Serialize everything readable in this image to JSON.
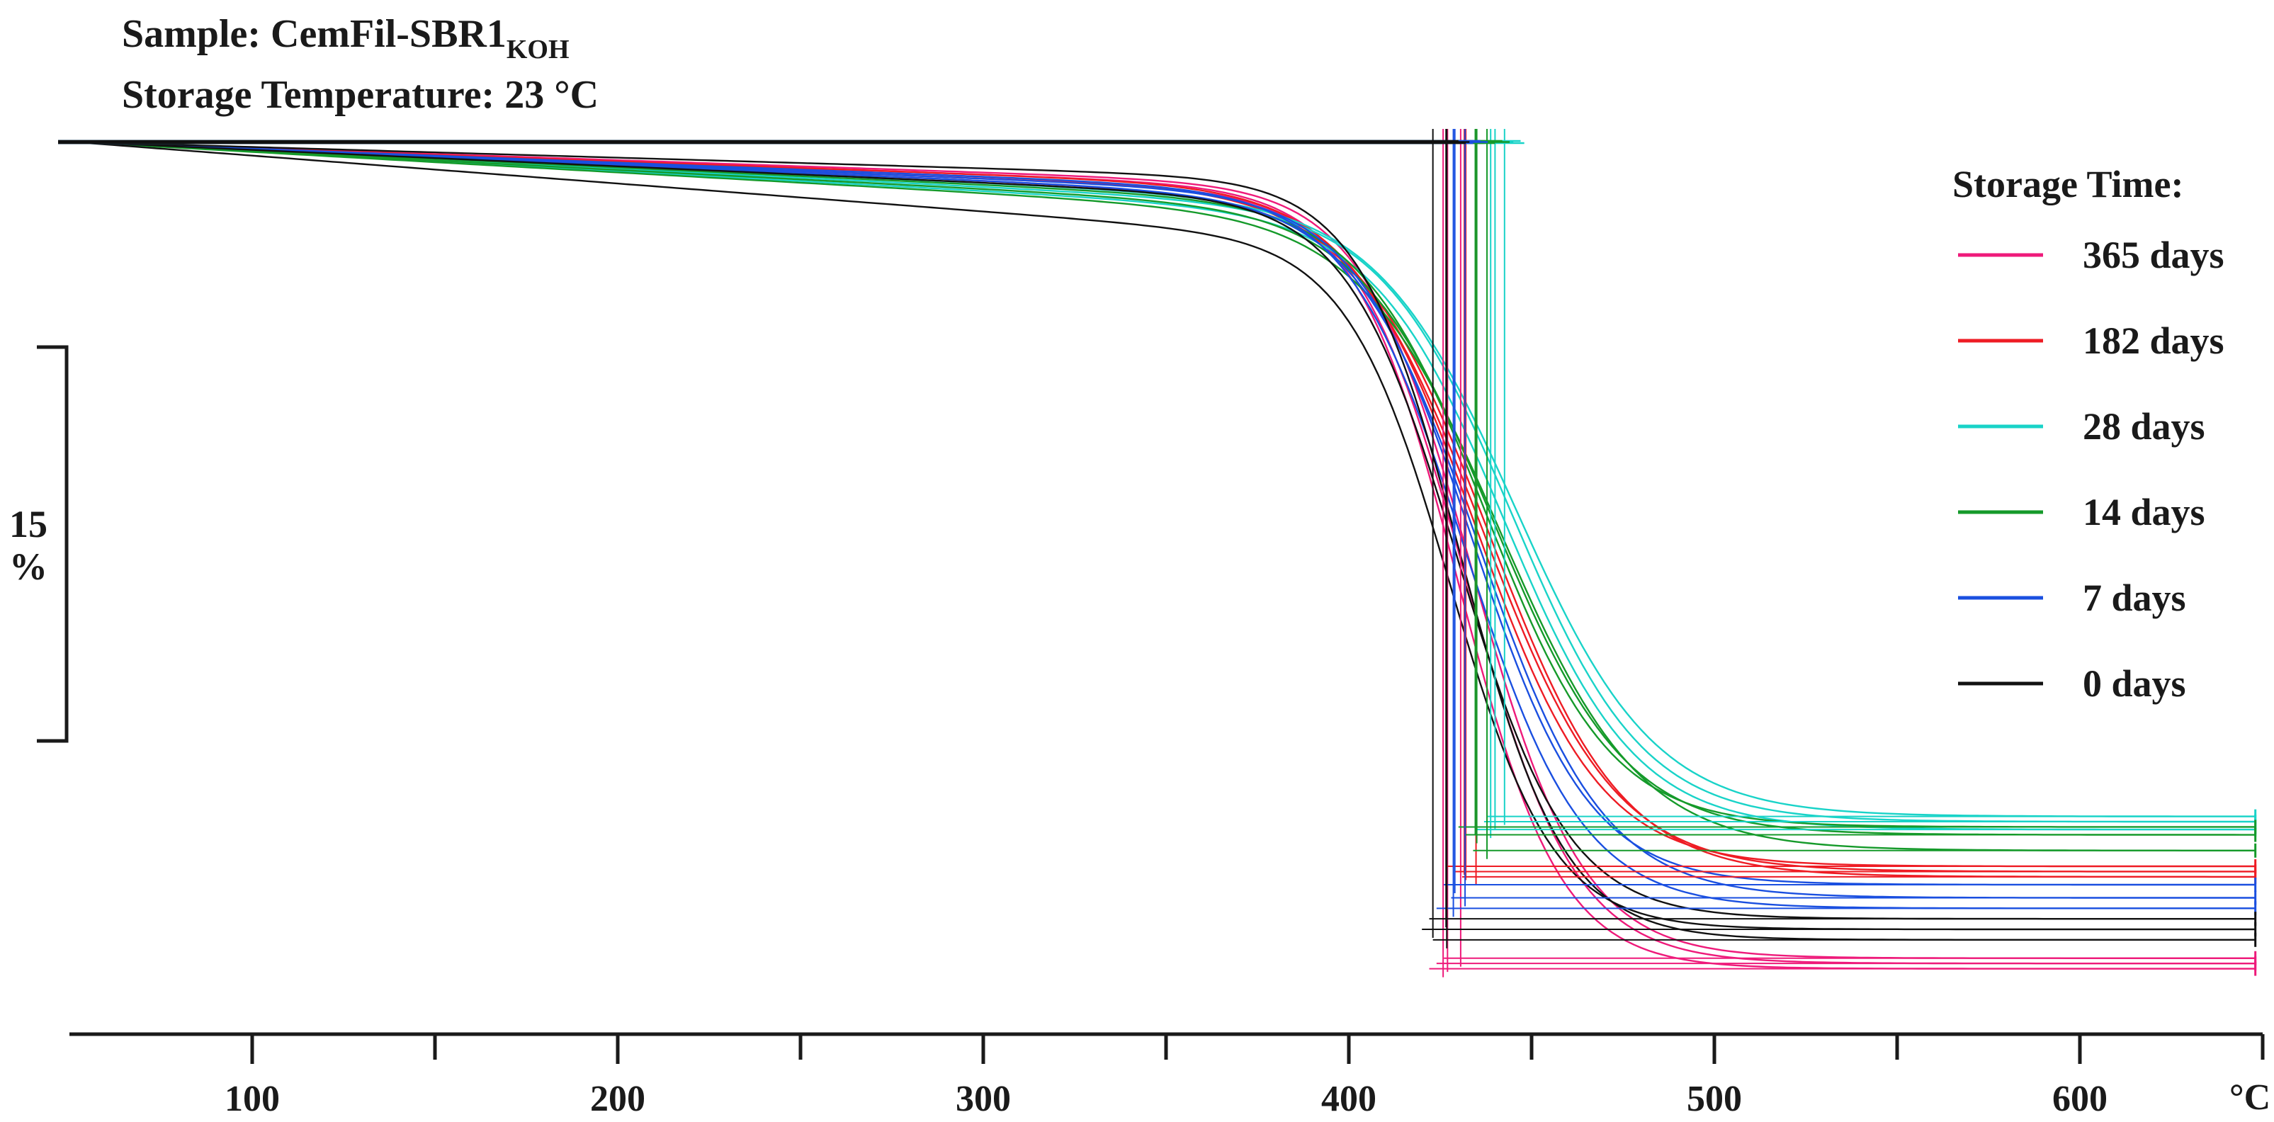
{
  "header": {
    "sample_label": "Sample: CemFil-SBR1",
    "sample_subscript": "KOH",
    "storage_temperature": "Storage Temperature: 23 °C"
  },
  "scale_bar": {
    "value_label": "15",
    "unit_label": "%"
  },
  "legend": {
    "title": "Storage Time:",
    "items": [
      {
        "label": "365 days",
        "color": "#ee1a7a"
      },
      {
        "label": "182 days",
        "color": "#ee1c24"
      },
      {
        "label": "28 days",
        "color": "#19d3c8"
      },
      {
        "label": "14 days",
        "color": "#159a2a"
      },
      {
        "label": "7 days",
        "color": "#1a4fe0"
      },
      {
        "label": "0 days",
        "color": "#111111"
      }
    ]
  },
  "chart_data": {
    "type": "line",
    "xlabel": "°C",
    "xlim": [
      50,
      650
    ],
    "xticks": [
      100,
      200,
      300,
      400,
      500,
      600
    ],
    "xtick_labels": [
      "100",
      "200",
      "300",
      "400",
      "500",
      "600"
    ],
    "minor_xticks": [
      150,
      250,
      350,
      450,
      550,
      650
    ],
    "y_scale_bar_percent": 15,
    "y_unit": "% mass",
    "series": [
      {
        "name": "365 days",
        "color": "#ee1a7a",
        "curves": [
          {
            "end_loss": 31.3,
            "midpoint": 432,
            "width": 15,
            "pre_drop": 1.6
          },
          {
            "end_loss": 31.5,
            "midpoint": 430,
            "width": 14,
            "pre_drop": 1.8
          },
          {
            "end_loss": 31.1,
            "midpoint": 434,
            "width": 15,
            "pre_drop": 1.5
          }
        ]
      },
      {
        "name": "182 days",
        "color": "#ee1c24",
        "curves": [
          {
            "end_loss": 27.8,
            "midpoint": 437,
            "width": 18,
            "pre_drop": 1.7
          },
          {
            "end_loss": 28.0,
            "midpoint": 439,
            "width": 18,
            "pre_drop": 1.9
          },
          {
            "end_loss": 27.6,
            "midpoint": 435,
            "width": 17,
            "pre_drop": 1.6
          }
        ]
      },
      {
        "name": "28 days",
        "color": "#19d3c8",
        "curves": [
          {
            "end_loss": 25.9,
            "midpoint": 445,
            "width": 18,
            "pre_drop": 2.2
          },
          {
            "end_loss": 26.2,
            "midpoint": 443,
            "width": 18,
            "pre_drop": 2.4
          },
          {
            "end_loss": 25.7,
            "midpoint": 446,
            "width": 19,
            "pre_drop": 2.0
          }
        ]
      },
      {
        "name": "14 days",
        "color": "#159a2a",
        "curves": [
          {
            "end_loss": 26.4,
            "midpoint": 440,
            "width": 18,
            "pre_drop": 2.3
          },
          {
            "end_loss": 27.0,
            "midpoint": 442,
            "width": 19,
            "pre_drop": 2.5
          },
          {
            "end_loss": 26.1,
            "midpoint": 438,
            "width": 17,
            "pre_drop": 2.1
          }
        ]
      },
      {
        "name": "7 days",
        "color": "#1a4fe0",
        "curves": [
          {
            "end_loss": 28.3,
            "midpoint": 434,
            "width": 16,
            "pre_drop": 1.8
          },
          {
            "end_loss": 28.8,
            "midpoint": 436,
            "width": 17,
            "pre_drop": 1.9
          },
          {
            "end_loss": 29.2,
            "midpoint": 432,
            "width": 16,
            "pre_drop": 1.7
          }
        ]
      },
      {
        "name": "0 days",
        "color": "#111111",
        "curves": [
          {
            "end_loss": 30.0,
            "midpoint": 428,
            "width": 14,
            "pre_drop": 3.4
          },
          {
            "end_loss": 30.4,
            "midpoint": 431,
            "width": 14,
            "pre_drop": 1.3
          },
          {
            "end_loss": 29.6,
            "midpoint": 430,
            "width": 15,
            "pre_drop": 2.0
          }
        ]
      }
    ]
  }
}
